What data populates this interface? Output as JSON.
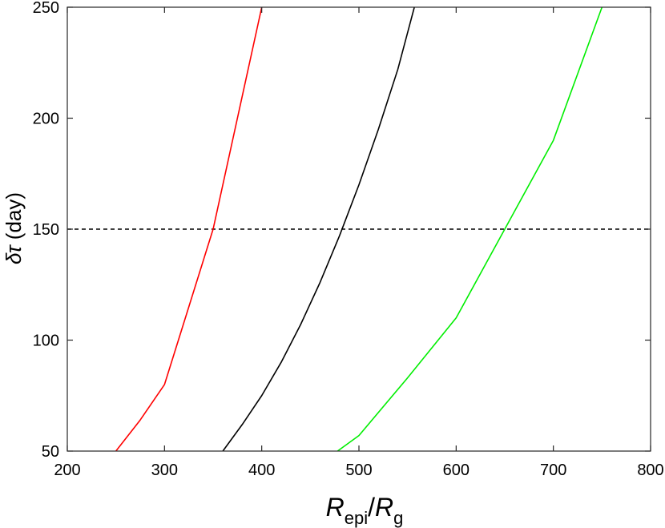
{
  "chart_data": {
    "type": "line",
    "title": "",
    "xlabel": {
      "main": "R",
      "sub": "epi",
      "slash": "/",
      "main2": "R",
      "sub2": "g"
    },
    "ylabel": {
      "symbol": "δτ",
      "unit": " (day)"
    },
    "xlim": [
      200,
      800
    ],
    "ylim": [
      50,
      250
    ],
    "xticks": [
      200,
      300,
      400,
      500,
      600,
      700,
      800
    ],
    "yticks": [
      50,
      100,
      150,
      200,
      250
    ],
    "grid": false,
    "legend": "none",
    "series": [
      {
        "color": "#ff0000",
        "points": [
          [
            250,
            50
          ],
          [
            275,
            64
          ],
          [
            300,
            80
          ],
          [
            325,
            115
          ],
          [
            350,
            150
          ],
          [
            375,
            200
          ],
          [
            400,
            250
          ]
        ]
      },
      {
        "color": "#000000",
        "points": [
          [
            360,
            50
          ],
          [
            380,
            62
          ],
          [
            400,
            75
          ],
          [
            420,
            90
          ],
          [
            440,
            107
          ],
          [
            460,
            126
          ],
          [
            480,
            147
          ],
          [
            500,
            170
          ],
          [
            520,
            195
          ],
          [
            540,
            222
          ],
          [
            557,
            250
          ]
        ]
      },
      {
        "color": "#00ee00",
        "points": [
          [
            478,
            50
          ],
          [
            500,
            57
          ],
          [
            550,
            83
          ],
          [
            600,
            110
          ],
          [
            650,
            150
          ],
          [
            700,
            190
          ],
          [
            750,
            250
          ]
        ]
      }
    ],
    "reference_lines": [
      {
        "orientation": "horizontal",
        "y": 150,
        "style": "dashed",
        "color": "#000000"
      }
    ]
  }
}
